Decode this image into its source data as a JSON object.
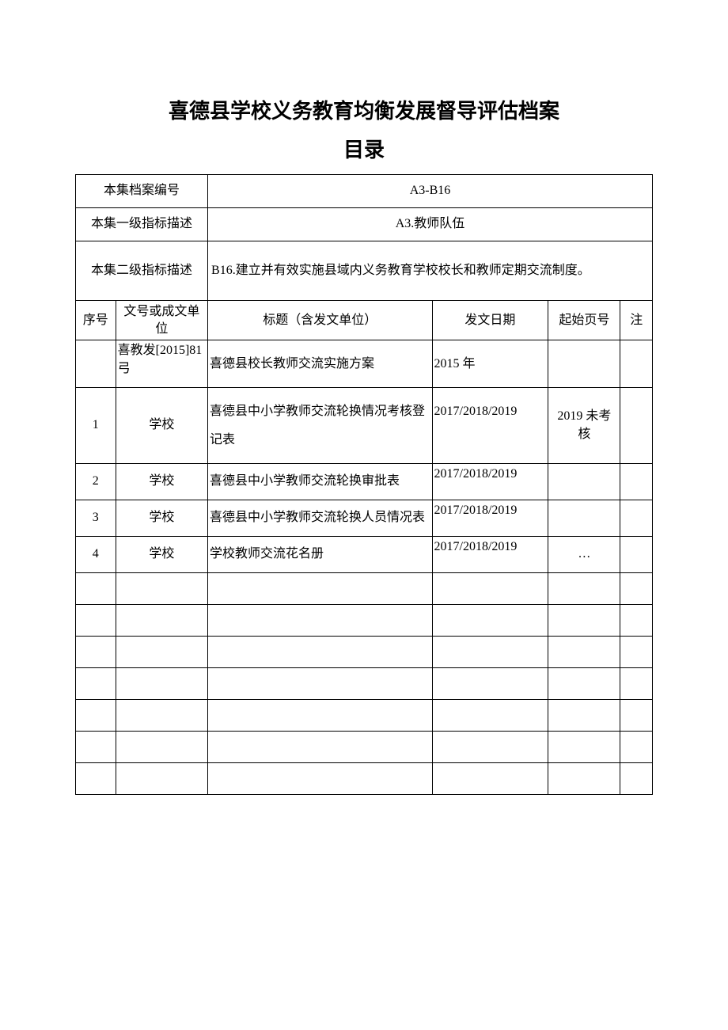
{
  "title": "喜德县学校义务教育均衡发展督导评估档案",
  "subtitle": "目录",
  "meta": {
    "archive_no_label": "本集档案编号",
    "archive_no_value": "A3-B16",
    "level1_label": "本集一级指标描述",
    "level1_value": "A3.教师队伍",
    "level2_label": "本集二级指标描述",
    "level2_value": "B16.建立并有效实施县域内义务教育学校校长和教师定期交流制度。"
  },
  "columns": {
    "seq": "序号",
    "doc": "文号或成文单位",
    "title": "标题（含发文单位）",
    "date": "发文日期",
    "page": "起始页号",
    "note": "注"
  },
  "rows": [
    {
      "seq": "",
      "doc": "喜教发[2015]81 弓",
      "title": "喜德县校长教师交流实施方案",
      "date": "2015 年",
      "page": "",
      "note": ""
    },
    {
      "seq": "1",
      "doc": "学校",
      "title": "喜德县中小学教师交流轮换情况考核登记表",
      "date": "2017/2018/2019",
      "page": "2019 未考核",
      "note": ""
    },
    {
      "seq": "2",
      "doc": "学校",
      "title": "喜德县中小学教师交流轮换审批表",
      "date": "2017/2018/2019",
      "page": "",
      "note": ""
    },
    {
      "seq": "3",
      "doc": "学校",
      "title": "喜德县中小学教师交流轮换人员情况表",
      "date": "2017/2018/2019",
      "page": "",
      "note": ""
    },
    {
      "seq": "4",
      "doc": "学校",
      "title": "学校教师交流花名册",
      "date": "2017/2018/2019",
      "page": "…",
      "note": ""
    },
    {
      "seq": "",
      "doc": "",
      "title": "",
      "date": "",
      "page": "",
      "note": ""
    },
    {
      "seq": "",
      "doc": "",
      "title": "",
      "date": "",
      "page": "",
      "note": ""
    },
    {
      "seq": "",
      "doc": "",
      "title": "",
      "date": "",
      "page": "",
      "note": ""
    },
    {
      "seq": "",
      "doc": "",
      "title": "",
      "date": "",
      "page": "",
      "note": ""
    },
    {
      "seq": "",
      "doc": "",
      "title": "",
      "date": "",
      "page": "",
      "note": ""
    },
    {
      "seq": "",
      "doc": "",
      "title": "",
      "date": "",
      "page": "",
      "note": ""
    },
    {
      "seq": "",
      "doc": "",
      "title": "",
      "date": "",
      "page": "",
      "note": ""
    }
  ],
  "style": {
    "border_color": "#000000",
    "background_color": "#ffffff",
    "text_color": "#000000",
    "title_fontsize": 26,
    "body_fontsize": 16
  }
}
